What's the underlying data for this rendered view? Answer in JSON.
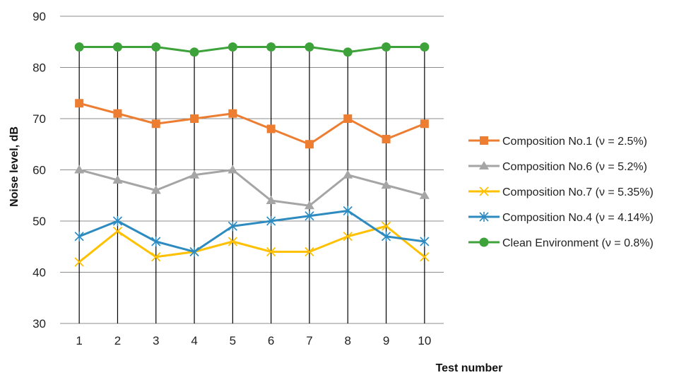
{
  "chart_data": {
    "type": "line",
    "title": "",
    "xlabel": "Test number",
    "ylabel": "Noise level, dB",
    "categories": [
      "1",
      "2",
      "3",
      "4",
      "5",
      "6",
      "7",
      "8",
      "9",
      "10"
    ],
    "ylim": [
      30,
      90
    ],
    "yticks": [
      "30",
      "40",
      "50",
      "60",
      "70",
      "80",
      "90"
    ],
    "grid": "horizontal",
    "drop_lines": true,
    "legend_position": "right",
    "series": [
      {
        "name": "Composition No.1 (ν = 2.5%)",
        "color": "#ED7D31",
        "marker": "square",
        "values": [
          73,
          71,
          69,
          70,
          71,
          68,
          65,
          70,
          66,
          69
        ]
      },
      {
        "name": "Composition No.6 (ν = 5.2%)",
        "color": "#A5A5A5",
        "marker": "triangle",
        "values": [
          60,
          58,
          56,
          59,
          60,
          54,
          53,
          59,
          57,
          55
        ]
      },
      {
        "name": "Composition No.7 (ν = 5.35%)",
        "color": "#FFC000",
        "marker": "x",
        "values": [
          42,
          48,
          43,
          44,
          46,
          44,
          44,
          47,
          49,
          43
        ]
      },
      {
        "name": "Composition No.4 (ν = 4.14%)",
        "color": "#2E8BC0",
        "marker": "asterisk",
        "values": [
          47,
          50,
          46,
          44,
          49,
          50,
          51,
          52,
          47,
          46
        ]
      },
      {
        "name": "Clean Environment (ν = 0.8%)",
        "color": "#3EA23A",
        "marker": "circle",
        "values": [
          84,
          84,
          84,
          83,
          84,
          84,
          84,
          83,
          84,
          84
        ]
      }
    ]
  }
}
